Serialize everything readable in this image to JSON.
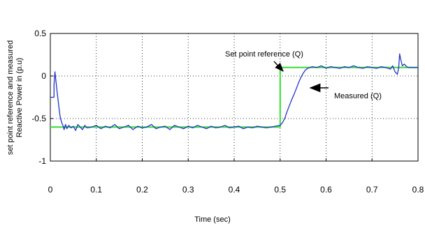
{
  "chart_data": {
    "type": "line",
    "title": "",
    "xlabel": "Time (sec)",
    "ylabel_lines": [
      "set point reference and measured",
      "Reactive Power in (p.u)"
    ],
    "xlim": [
      0,
      0.8
    ],
    "ylim": [
      -1,
      0.5
    ],
    "x_ticks": [
      0,
      0.1,
      0.2,
      0.3,
      0.4,
      0.5,
      0.6,
      0.7,
      0.8
    ],
    "x_tick_labels": [
      "0",
      "0.1",
      "0.2",
      "0.3",
      "0.4",
      "0.5",
      "0.6",
      "0.7",
      "0.8"
    ],
    "y_ticks": [
      0.5,
      0,
      -0.5,
      -1
    ],
    "y_tick_labels": [
      "0.5",
      "0",
      "-0.5",
      "-1"
    ],
    "grid": true,
    "grid_style": "dotted",
    "series": [
      {
        "name": "Set point reference (Q)",
        "color": "#33dd33",
        "x": [
          0,
          0.005,
          0.005,
          0.5,
          0.5,
          0.8
        ],
        "y": [
          -0.6,
          -0.6,
          -0.6,
          -0.6,
          0.1,
          0.1
        ]
      },
      {
        "name": "Measured (Q)",
        "color": "#2233cc",
        "x": [
          0,
          0.008,
          0.008,
          0.01,
          0.012,
          0.015,
          0.018,
          0.02,
          0.022,
          0.025,
          0.028,
          0.03,
          0.033,
          0.036,
          0.04,
          0.045,
          0.05,
          0.055,
          0.06,
          0.065,
          0.07,
          0.075,
          0.08,
          0.09,
          0.1,
          0.11,
          0.12,
          0.13,
          0.14,
          0.15,
          0.16,
          0.17,
          0.18,
          0.19,
          0.2,
          0.21,
          0.22,
          0.23,
          0.24,
          0.25,
          0.26,
          0.27,
          0.28,
          0.29,
          0.3,
          0.31,
          0.32,
          0.33,
          0.34,
          0.35,
          0.36,
          0.37,
          0.38,
          0.39,
          0.4,
          0.41,
          0.42,
          0.43,
          0.44,
          0.45,
          0.46,
          0.47,
          0.48,
          0.49,
          0.5,
          0.505,
          0.51,
          0.515,
          0.52,
          0.525,
          0.53,
          0.535,
          0.54,
          0.545,
          0.55,
          0.555,
          0.56,
          0.57,
          0.58,
          0.59,
          0.6,
          0.61,
          0.62,
          0.63,
          0.64,
          0.65,
          0.66,
          0.67,
          0.68,
          0.69,
          0.7,
          0.71,
          0.72,
          0.73,
          0.74,
          0.745,
          0.75,
          0.755,
          0.758,
          0.76,
          0.763,
          0.766,
          0.77,
          0.775,
          0.78,
          0.79,
          0.8
        ],
        "y": [
          -0.25,
          -0.25,
          -0.1,
          0.05,
          -0.05,
          -0.2,
          -0.33,
          -0.43,
          -0.5,
          -0.55,
          -0.59,
          -0.63,
          -0.57,
          -0.62,
          -0.58,
          -0.61,
          -0.59,
          -0.64,
          -0.57,
          -0.6,
          -0.63,
          -0.58,
          -0.61,
          -0.6,
          -0.58,
          -0.62,
          -0.59,
          -0.61,
          -0.57,
          -0.62,
          -0.6,
          -0.58,
          -0.63,
          -0.59,
          -0.61,
          -0.6,
          -0.57,
          -0.62,
          -0.6,
          -0.59,
          -0.63,
          -0.58,
          -0.6,
          -0.62,
          -0.59,
          -0.61,
          -0.58,
          -0.6,
          -0.62,
          -0.59,
          -0.61,
          -0.6,
          -0.58,
          -0.61,
          -0.6,
          -0.59,
          -0.62,
          -0.6,
          -0.61,
          -0.59,
          -0.6,
          -0.61,
          -0.6,
          -0.59,
          -0.58,
          -0.55,
          -0.5,
          -0.42,
          -0.35,
          -0.28,
          -0.22,
          -0.15,
          -0.08,
          -0.02,
          0.03,
          0.07,
          0.09,
          0.11,
          0.1,
          0.12,
          0.09,
          0.11,
          0.1,
          0.09,
          0.11,
          0.1,
          0.12,
          0.1,
          0.09,
          0.11,
          0.1,
          0.09,
          0.11,
          0.1,
          0.08,
          0.12,
          0.05,
          0.02,
          0.1,
          0.26,
          0.18,
          0.12,
          0.14,
          0.11,
          0.1,
          0.1,
          0.1
        ]
      }
    ],
    "annotations": [
      {
        "text": "Set point reference (Q)",
        "target_x": 0.5,
        "target_y": 0.1
      },
      {
        "text": "Measured (Q)",
        "target_x": 0.54,
        "target_y": -0.1
      }
    ]
  }
}
